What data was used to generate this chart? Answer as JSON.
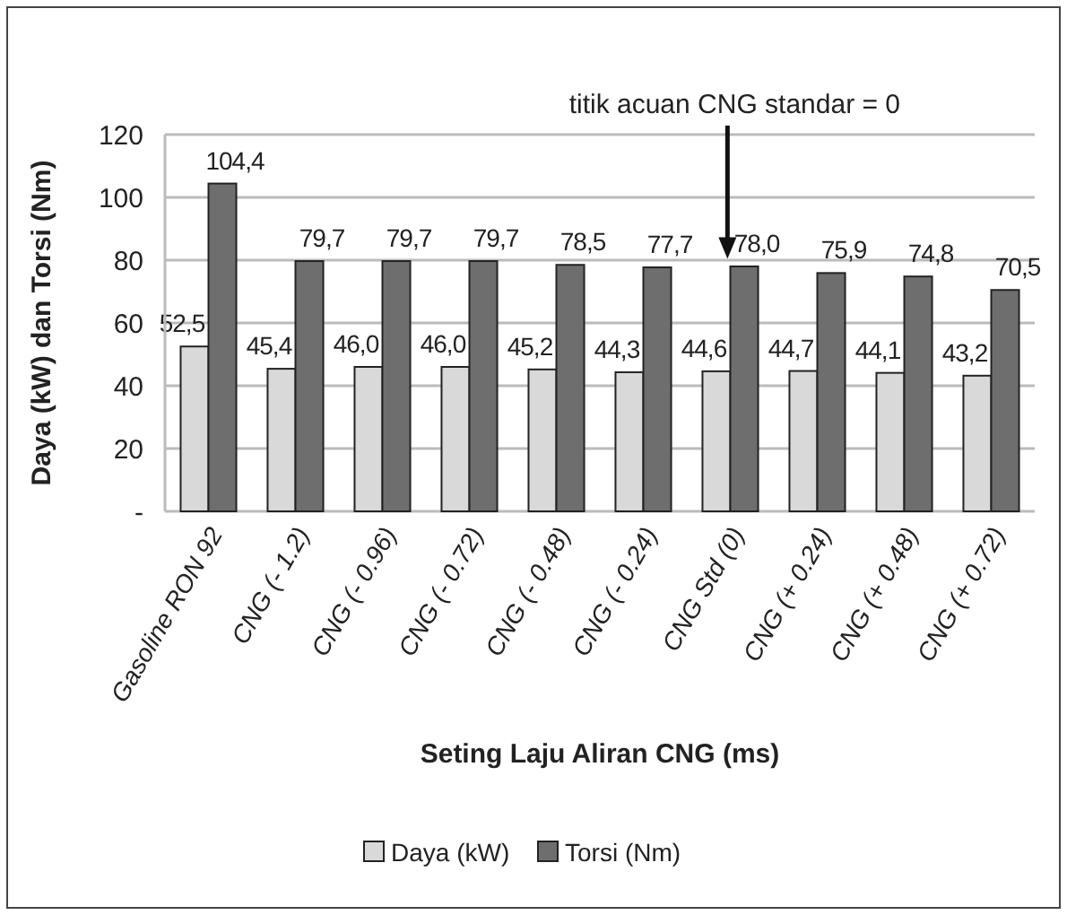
{
  "chart_data": {
    "type": "bar",
    "xlabel": "Seting Laju Aliran CNG (ms)",
    "ylabel": "Daya (kW) dan Torsi (Nm)",
    "categories": [
      "Gasoline RON 92",
      "CNG (- 1.2)",
      "CNG (- 0.96)",
      "CNG (- 0.72)",
      "CNG (- 0.48)",
      "CNG (- 0.24)",
      "CNG Std (0)",
      "CNG (+ 0.24)",
      "CNG (+ 0.48)",
      "CNG (+ 0.72)"
    ],
    "series": [
      {
        "name": "Daya (kW)",
        "color": "#d9d9d9",
        "values": [
          52.5,
          45.4,
          46.0,
          46.0,
          45.2,
          44.3,
          44.6,
          44.7,
          44.1,
          43.2
        ],
        "value_labels": [
          "52,5",
          "45,4",
          "46,0",
          "46,0",
          "45,2",
          "44,3",
          "44,6",
          "44,7",
          "44,1",
          "43,2"
        ]
      },
      {
        "name": "Torsi (Nm)",
        "color": "#6e6e6e",
        "values": [
          104.4,
          79.7,
          79.7,
          79.7,
          78.5,
          77.7,
          78.0,
          75.9,
          74.8,
          70.5
        ],
        "value_labels": [
          "104,4",
          "79,7",
          "79,7",
          "79,7",
          "78,5",
          "77,7",
          "78,0",
          "75,9",
          "74,8",
          "70,5"
        ]
      }
    ],
    "ylim": [
      0,
      120
    ],
    "yticks": [
      {
        "value": 0,
        "label": "-"
      },
      20,
      40,
      60,
      80,
      100,
      120
    ],
    "grid": "y",
    "legend": "bottom",
    "annotations": [
      "titik acuan CNG standar = 0"
    ]
  }
}
